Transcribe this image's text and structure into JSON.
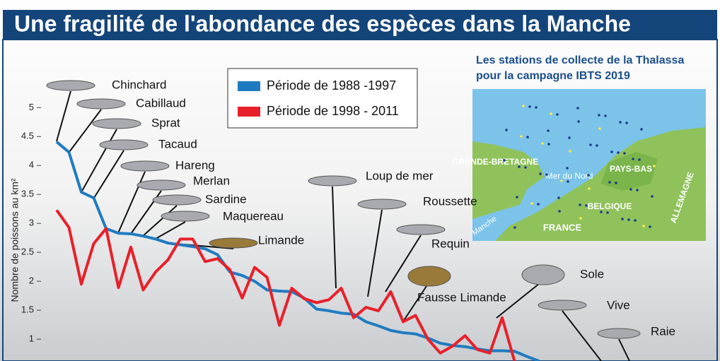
{
  "chart_data": {
    "type": "line",
    "title": "Une fragilité de l'abondance des espèces dans la Manche",
    "y_label": "Nombre de poissons au km²",
    "categories": [
      null,
      null,
      null,
      null,
      null,
      null,
      null,
      null,
      null,
      null,
      null,
      null,
      null,
      null,
      null,
      null,
      null,
      null,
      null,
      null,
      null,
      null,
      null,
      null,
      null,
      null,
      null,
      null,
      null,
      null,
      null,
      null,
      null,
      null,
      null,
      null,
      null,
      null,
      null,
      null
    ],
    "series": [
      {
        "name": "Période de 1988 -1997",
        "color": "#1f7bc0",
        "values": [
          4.41,
          4.23,
          3.54,
          3.44,
          2.91,
          2.83,
          2.82,
          2.78,
          2.73,
          2.66,
          2.63,
          2.6,
          2.56,
          2.46,
          2.16,
          2.1,
          2.0,
          1.85,
          1.83,
          1.82,
          1.71,
          1.52,
          1.49,
          1.45,
          1.43,
          1.3,
          1.23,
          1.15,
          1.11,
          1.09,
          1.02,
          0.93,
          0.89,
          0.87,
          0.83,
          0.8,
          0.8,
          0.79,
          0.7,
          0.62
        ]
      },
      {
        "name": "Période de 1998 - 2011",
        "color": "#e8202a",
        "values": [
          3.23,
          2.93,
          1.95,
          2.65,
          2.91,
          1.89,
          2.59,
          1.85,
          2.16,
          2.37,
          2.73,
          2.73,
          2.34,
          2.39,
          2.2,
          1.71,
          2.24,
          2.07,
          1.24,
          1.88,
          1.7,
          1.63,
          1.68,
          1.88,
          1.37,
          1.55,
          1.49,
          1.82,
          1.3,
          1.41,
          1.0,
          0.76,
          0.88,
          1.06,
          0.82,
          0.76,
          1.37,
          0.62,
          null,
          null
        ]
      }
    ],
    "ylim": [
      0,
      6.2
    ],
    "yticks": [
      1,
      1.5,
      2,
      2.5,
      3,
      3.5,
      4,
      4.5,
      5
    ],
    "annotations": [
      "Chinchard",
      "Cabillaud",
      "Sprat",
      "Tacaud",
      "Hareng",
      "Merlan",
      "Sardine",
      "Maquereau",
      "Limande",
      "Loup de mer",
      "Roussette",
      "Requin",
      "Fausse Limande",
      "Sole",
      "Vive",
      "Raie"
    ]
  },
  "map": {
    "title": [
      "Les stations de collecte de la Thalassa",
      "pour la campagne IBTS 2019"
    ],
    "labels": [
      "GRANDE-BRETAGNE",
      "Mer du Nord",
      "PAYS-BAS",
      "BELGIQUE",
      "FRANCE",
      "ALLEMAGNE",
      "Manche"
    ]
  }
}
